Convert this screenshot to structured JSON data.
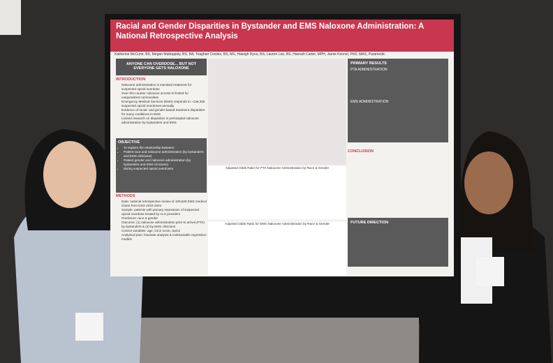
{
  "poster": {
    "title": "Racial and Gender Disparities in Bystander and EMS Naloxone Administration: A National Retrospective Analysis",
    "authors": "Katherine McCune, BS, Megan Mattoppaly, BS, BA, Teaghan Cowles, BS, MS, Haleigh Ryou, BS, Lauren Lee, BS, Hannah Carter, MPH, Jamie Kennel, PhD, MAS, Paramedic",
    "banner": "ANYONE CAN OVERDOSE... BUT NOT EVERYONE GETS NALOXONE",
    "sections": [
      {
        "heading": "INTRODUCTION",
        "items": [
          "Naloxone administration is standard treatment for suspected opioid overdose",
          "Over-the-counter naloxone access is limited for marginalized communities",
          "Emergency Medical Services (EMS) responds to ~136,300 suspected opioid overdoses annually",
          "Evidence of racial- and gender-based treatment disparities for many conditions in EMS",
          "Limited research on disparities in prehospital naloxone administration by bystanders and EMS"
        ]
      },
      {
        "heading": "OBJECTIVE",
        "items": [
          "To explore the relationship between:",
          "Patient race and naloxone administration (by bystanders and EMS clinicians)",
          "Patient gender and naloxone administration (by bystanders and EMS clinicians)",
          "during suspected opioid overdoses"
        ]
      },
      {
        "heading": "METHODS",
        "items": [
          "Data: national retrospective review of 109,626 EMS medical charts from ESO 2022-2024",
          "Sample: patients with primary impression of suspected opioid overdose treated by ALS providers",
          "Predictors: race & gender",
          "Outcome: (1) naloxone administration prior to arrival (PTA) by bystanders & (2) by EMS clinicians",
          "Control variables: age, GCS score, SpO2",
          "Analytical plan: bivariate analysis & multivariable regression models"
        ]
      }
    ],
    "charts": [
      {
        "title": "Adjusted Odds Ratio for PTA Naloxone Administration by Race & Gender"
      },
      {
        "title": "Adjusted Odds Ratio for EMS Naloxone Administration by Race & Gender"
      }
    ],
    "results": {
      "heading": "PRIMARY RESULTS",
      "subheads": [
        "PTA ADMINISTRATION",
        "EMS ADMINISTRATION"
      ]
    },
    "conclusion": "CONCLUSION",
    "future": "FUTURE DIRECTION"
  }
}
